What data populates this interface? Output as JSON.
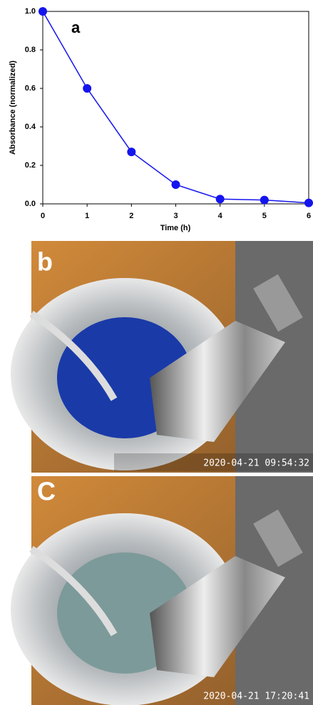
{
  "chart_data": {
    "type": "line",
    "title": "a",
    "xlabel": "Time (h)",
    "ylabel": "Absorbance (normalized)",
    "x": [
      0,
      1,
      2,
      3,
      4,
      5,
      6
    ],
    "series": [
      {
        "color": "#1414ee",
        "values": [
          1.0,
          0.6,
          0.27,
          0.1,
          0.025,
          0.02,
          0.005
        ]
      }
    ],
    "xlim": [
      0,
      6
    ],
    "xticks": [
      0,
      1,
      2,
      3,
      4,
      5,
      6
    ],
    "ylim": [
      0,
      1
    ],
    "yticks": [
      {
        "value": 0,
        "label": "0.0"
      },
      0.2,
      0.4,
      0.6,
      0.8,
      {
        "value": 1,
        "label": "1.0"
      }
    ]
  },
  "photos": [
    {
      "label": "b",
      "timestamp": "2020-04-21 09:54:32"
    },
    {
      "label": "C",
      "timestamp": "2020-04-21 17:20:41"
    }
  ]
}
